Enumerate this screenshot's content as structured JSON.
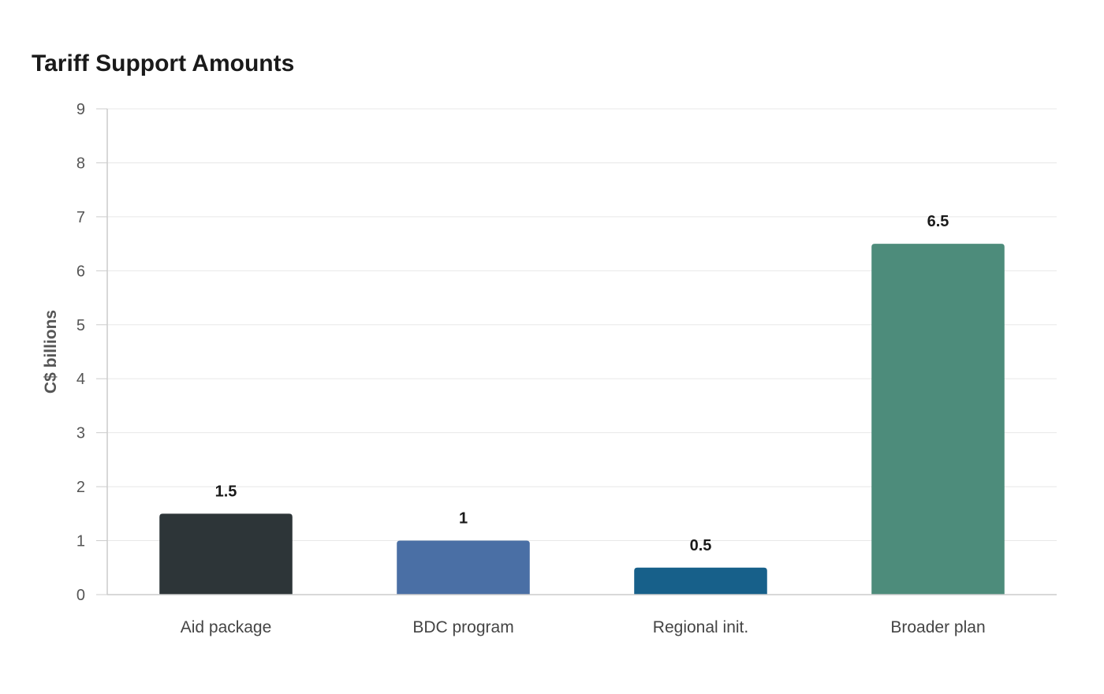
{
  "chart_data": {
    "type": "bar",
    "title": "Tariff Support Amounts",
    "xlabel": "",
    "ylabel": "C$ billions",
    "categories": [
      "Aid package",
      "BDC program",
      "Regional init.",
      "Broader plan"
    ],
    "values": [
      1.5,
      1,
      0.5,
      6.5
    ],
    "value_labels": [
      "1.5",
      "1",
      "0.5",
      "6.5"
    ],
    "colors": [
      "#2d3538",
      "#4a6fa5",
      "#17608a",
      "#4d8c7b"
    ],
    "ylim": [
      0,
      9
    ],
    "yticks": [
      0,
      1,
      2,
      3,
      4,
      5,
      6,
      7,
      8,
      9
    ],
    "grid": true,
    "legend": "none"
  }
}
